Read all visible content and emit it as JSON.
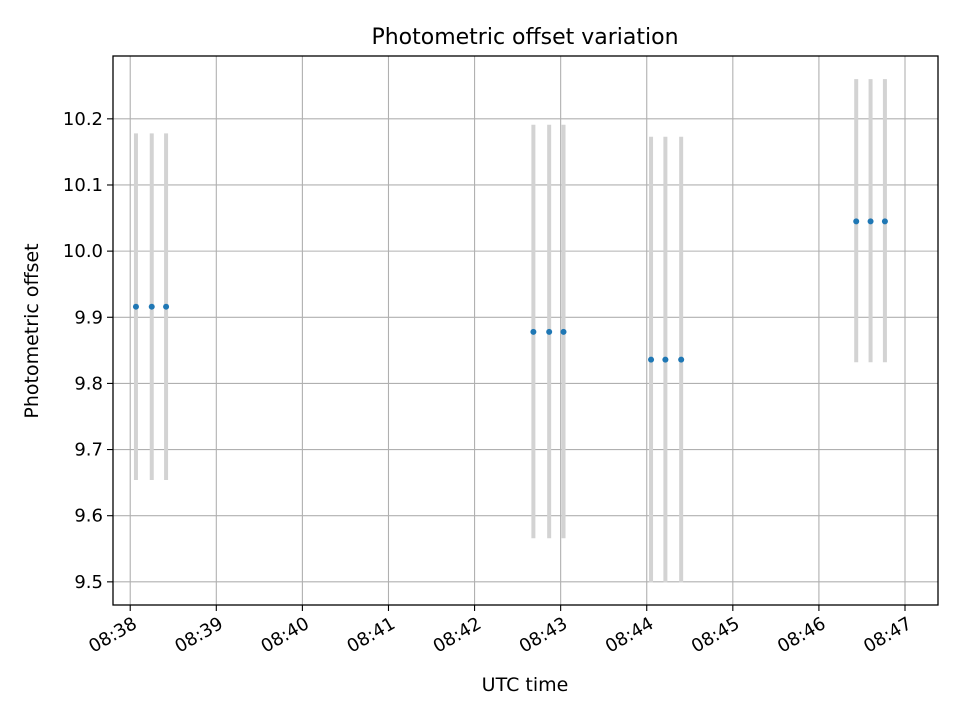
{
  "chart_data": {
    "type": "scatter",
    "title": "Photometric offset variation",
    "xlabel": "UTC time",
    "ylabel": "Photometric offset",
    "x_axis_type": "time",
    "xlim": [
      "08:37:48",
      "08:47:23"
    ],
    "ylim": [
      9.465,
      10.295
    ],
    "grid": true,
    "x_ticks": [
      "08:38",
      "08:39",
      "08:40",
      "08:41",
      "08:42",
      "08:43",
      "08:44",
      "08:45",
      "08:46",
      "08:47"
    ],
    "y_ticks": [
      "9.5",
      "9.6",
      "9.7",
      "9.8",
      "9.9",
      "10.0",
      "10.1",
      "10.2"
    ],
    "marker_color": "#1f77b4",
    "errorbar_color": "#d3d3d3",
    "points": [
      {
        "x": "08:38:04",
        "y": 9.916,
        "ylow": 9.654,
        "yhigh": 10.178
      },
      {
        "x": "08:38:15",
        "y": 9.916,
        "ylow": 9.654,
        "yhigh": 10.178
      },
      {
        "x": "08:38:25",
        "y": 9.916,
        "ylow": 9.654,
        "yhigh": 10.178
      },
      {
        "x": "08:42:41",
        "y": 9.878,
        "ylow": 9.566,
        "yhigh": 10.191
      },
      {
        "x": "08:42:52",
        "y": 9.878,
        "ylow": 9.566,
        "yhigh": 10.191
      },
      {
        "x": "08:43:02",
        "y": 9.878,
        "ylow": 9.566,
        "yhigh": 10.191
      },
      {
        "x": "08:44:03",
        "y": 9.836,
        "ylow": 9.499,
        "yhigh": 10.173
      },
      {
        "x": "08:44:13",
        "y": 9.836,
        "ylow": 9.499,
        "yhigh": 10.173
      },
      {
        "x": "08:44:24",
        "y": 9.836,
        "ylow": 9.499,
        "yhigh": 10.173
      },
      {
        "x": "08:46:26",
        "y": 10.045,
        "ylow": 9.832,
        "yhigh": 10.26
      },
      {
        "x": "08:46:36",
        "y": 10.045,
        "ylow": 9.832,
        "yhigh": 10.26
      },
      {
        "x": "08:46:46",
        "y": 10.045,
        "ylow": 9.832,
        "yhigh": 10.26
      }
    ]
  }
}
